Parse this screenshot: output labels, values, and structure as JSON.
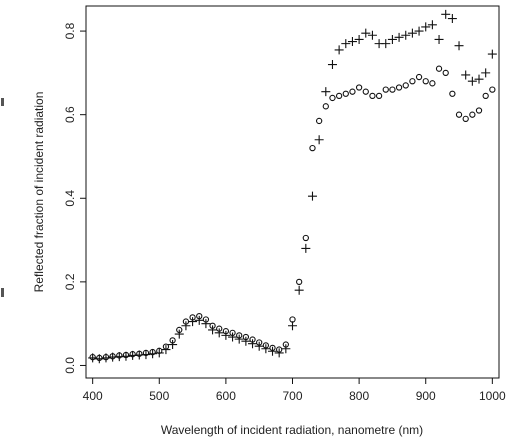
{
  "chart_data": {
    "type": "scatter",
    "xlabel": "Wavelength of incident radiation, nanometre (nm)",
    "ylabel": "Reflected fraction of incident radiation",
    "xlim": [
      390,
      1010
    ],
    "ylim": [
      -0.03,
      0.86
    ],
    "xticks": [
      400,
      500,
      600,
      700,
      800,
      900,
      1000
    ],
    "yticks": [
      0.0,
      0.2,
      0.4,
      0.6,
      0.8
    ],
    "xtick_labels": [
      "400",
      "500",
      "600",
      "700",
      "800",
      "900",
      "1000"
    ],
    "ytick_labels": [
      "0.0",
      "0.2",
      "0.4",
      "0.6",
      "0.8"
    ],
    "grid": false,
    "series": [
      {
        "marker": "circle",
        "x": [
          400,
          410,
          420,
          430,
          440,
          450,
          460,
          470,
          480,
          490,
          500,
          510,
          520,
          530,
          540,
          550,
          560,
          570,
          580,
          590,
          600,
          610,
          620,
          630,
          640,
          650,
          660,
          670,
          680,
          690,
          700,
          710,
          720,
          730,
          740,
          750,
          760,
          770,
          780,
          790,
          800,
          810,
          820,
          830,
          840,
          850,
          860,
          870,
          880,
          890,
          900,
          910,
          920,
          930,
          940,
          950,
          960,
          970,
          980,
          990,
          1000
        ],
        "y": [
          0.02,
          0.018,
          0.02,
          0.022,
          0.024,
          0.025,
          0.027,
          0.028,
          0.03,
          0.032,
          0.035,
          0.045,
          0.06,
          0.085,
          0.105,
          0.115,
          0.118,
          0.11,
          0.095,
          0.088,
          0.082,
          0.078,
          0.072,
          0.068,
          0.062,
          0.055,
          0.048,
          0.042,
          0.038,
          0.05,
          0.11,
          0.2,
          0.305,
          0.52,
          0.585,
          0.62,
          0.64,
          0.645,
          0.65,
          0.655,
          0.665,
          0.655,
          0.645,
          0.645,
          0.66,
          0.66,
          0.665,
          0.67,
          0.68,
          0.69,
          0.68,
          0.675,
          0.71,
          0.7,
          0.65,
          0.6,
          0.59,
          0.6,
          0.61,
          0.645,
          0.66
        ]
      },
      {
        "marker": "plus",
        "x": [
          400,
          410,
          420,
          430,
          440,
          450,
          460,
          470,
          480,
          490,
          500,
          510,
          520,
          530,
          540,
          550,
          560,
          570,
          580,
          590,
          600,
          610,
          620,
          630,
          640,
          650,
          660,
          670,
          680,
          690,
          700,
          710,
          720,
          730,
          740,
          750,
          760,
          770,
          780,
          790,
          800,
          810,
          820,
          830,
          840,
          850,
          860,
          870,
          880,
          890,
          900,
          910,
          920,
          930,
          940,
          950,
          960,
          970,
          980,
          990,
          1000
        ],
        "y": [
          0.018,
          0.016,
          0.018,
          0.02,
          0.021,
          0.022,
          0.024,
          0.025,
          0.026,
          0.028,
          0.03,
          0.038,
          0.05,
          0.075,
          0.095,
          0.105,
          0.108,
          0.1,
          0.085,
          0.078,
          0.072,
          0.068,
          0.063,
          0.058,
          0.052,
          0.046,
          0.04,
          0.034,
          0.03,
          0.04,
          0.095,
          0.18,
          0.28,
          0.405,
          0.54,
          0.655,
          0.72,
          0.755,
          0.77,
          0.775,
          0.78,
          0.795,
          0.79,
          0.77,
          0.77,
          0.78,
          0.785,
          0.79,
          0.795,
          0.8,
          0.81,
          0.815,
          0.78,
          0.84,
          0.83,
          0.765,
          0.695,
          0.68,
          0.685,
          0.7,
          0.745
        ]
      }
    ]
  }
}
